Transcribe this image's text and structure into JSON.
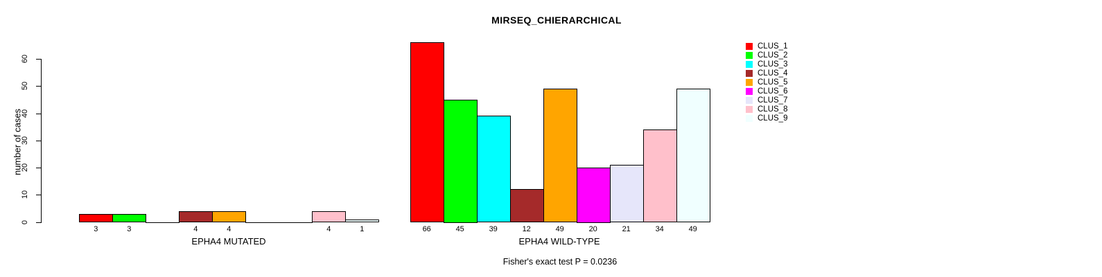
{
  "chart_data": {
    "type": "bar",
    "title": "MIRSEQ_CHIERARCHICAL",
    "ylabel": "number of cases",
    "ylim": [
      0,
      66
    ],
    "yticks": [
      0,
      10,
      20,
      30,
      40,
      50,
      60
    ],
    "grid": false,
    "legend_position": "right",
    "categories": [
      "CLUS_1",
      "CLUS_2",
      "CLUS_3",
      "CLUS_4",
      "CLUS_5",
      "CLUS_6",
      "CLUS_7",
      "CLUS_8",
      "CLUS_9"
    ],
    "colors": [
      "#FF0000",
      "#00FF00",
      "#00FFFF",
      "#A52A2A",
      "#FFA500",
      "#FF00FF",
      "#E6E6FA",
      "#FFC0CB",
      "#F0FFFF"
    ],
    "series": [
      {
        "name": "EPHA4 MUTATED",
        "values": [
          3,
          3,
          0,
          4,
          4,
          0,
          0,
          4,
          1
        ]
      },
      {
        "name": "EPHA4 WILD-TYPE",
        "values": [
          66,
          45,
          39,
          12,
          49,
          20,
          21,
          34,
          49
        ]
      }
    ],
    "annotation": "Fisher's exact test P = 0.0236"
  }
}
